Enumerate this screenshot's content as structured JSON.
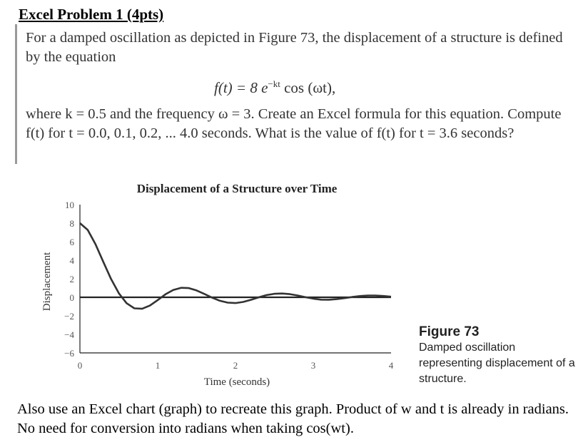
{
  "problem": {
    "heading": "Excel Problem 1 (4pts)",
    "paragraph1": "For a damped oscillation as depicted in Figure 73, the displacement of a structure is defined by the equation",
    "equation": {
      "lhs": "f(t) = 8 e",
      "exponent": "−kt",
      "rhs": " cos (ωt),"
    },
    "paragraph2": "where k = 0.5 and the frequency ω = 3. Create an Excel formula for this equation. Compute f(t) for t = 0.0, 0.1, 0.2, ... 4.0 seconds. What is the value of f(t) for t = 3.6 seconds?"
  },
  "chart_data": {
    "type": "line",
    "title": "Displacement of a Structure over Time",
    "xlabel": "Time (seconds)",
    "ylabel": "Displacement",
    "xlim": [
      0,
      4
    ],
    "ylim": [
      -6,
      10
    ],
    "xticks": [
      "0",
      "1",
      "2",
      "3",
      "4"
    ],
    "yticks": [
      "10",
      "8",
      "6",
      "4",
      "2",
      "0",
      "−2",
      "−4",
      "−6"
    ],
    "grid": false,
    "series": [
      {
        "x": [
          0,
          0.1,
          0.2,
          0.3,
          0.4,
          0.5,
          0.6,
          0.7,
          0.8,
          0.9,
          1.0,
          1.1,
          1.2,
          1.3,
          1.4,
          1.5,
          1.6,
          1.7,
          1.8,
          1.9,
          2.0,
          2.1,
          2.2,
          2.3,
          2.4,
          2.5,
          2.6,
          2.7,
          2.8,
          2.9,
          3.0,
          3.1,
          3.2,
          3.3,
          3.4,
          3.5,
          3.6,
          3.7,
          3.8,
          3.9,
          4.0
        ],
        "y": [
          8.0,
          7.27,
          5.73,
          3.83,
          1.98,
          0.44,
          -0.64,
          -1.19,
          -1.24,
          -0.89,
          -0.3,
          0.32,
          0.79,
          1.02,
          0.99,
          0.74,
          0.36,
          -0.04,
          -0.38,
          -0.58,
          -0.62,
          -0.5,
          -0.27,
          0.0,
          0.24,
          0.38,
          0.41,
          0.34,
          0.19,
          0.01,
          -0.15,
          -0.25,
          -0.26,
          -0.2,
          -0.09,
          0.03,
          0.13,
          0.19,
          0.19,
          0.14,
          0.06
        ]
      }
    ]
  },
  "figure": {
    "label": "Figure 73",
    "caption": "Damped oscillation representing displacement of a structure."
  },
  "note": "Also use an Excel chart (graph) to recreate this graph. Product of w and t is already in radians. No need for conversion into radians when taking cos(wt)."
}
